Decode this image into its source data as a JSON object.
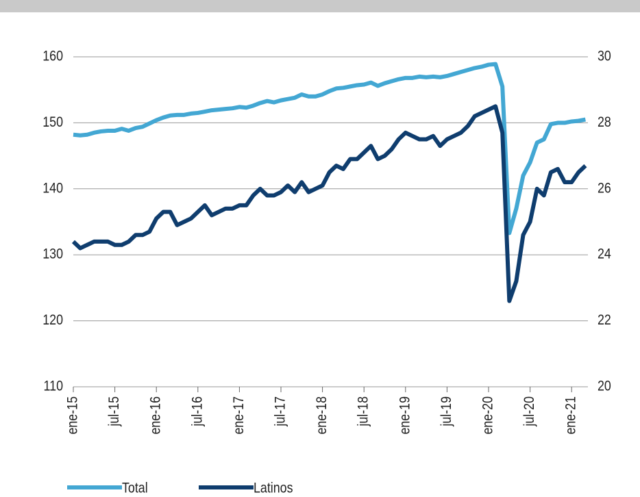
{
  "chart_data": {
    "type": "line",
    "categories": [
      "ene-15",
      null,
      null,
      null,
      null,
      null,
      "jul-15",
      null,
      null,
      null,
      null,
      null,
      "ene-16",
      null,
      null,
      null,
      null,
      null,
      "jul-16",
      null,
      null,
      null,
      null,
      null,
      "ene-17",
      null,
      null,
      null,
      null,
      null,
      "jul-17",
      null,
      null,
      null,
      null,
      null,
      "ene-18",
      null,
      null,
      null,
      null,
      null,
      "jul-18",
      null,
      null,
      null,
      null,
      null,
      "ene-19",
      null,
      null,
      null,
      null,
      null,
      "jul-19",
      null,
      null,
      null,
      null,
      null,
      "ene-20",
      null,
      null,
      null,
      null,
      null,
      "jul-20",
      null,
      null,
      null,
      null,
      null,
      "ene-21",
      null,
      null
    ],
    "series": [
      {
        "name": "Total",
        "color": "#43a7d3",
        "values": [
          148.2,
          148.1,
          148.2,
          148.5,
          148.7,
          148.8,
          148.8,
          149.1,
          148.8,
          149.2,
          149.4,
          149.9,
          150.4,
          150.8,
          151.1,
          151.2,
          151.2,
          151.4,
          151.5,
          151.7,
          151.9,
          152.0,
          152.1,
          152.2,
          152.4,
          152.3,
          152.6,
          153.0,
          153.3,
          153.1,
          153.4,
          153.6,
          153.8,
          154.3,
          154.0,
          154.0,
          154.3,
          154.8,
          155.2,
          155.3,
          155.5,
          155.7,
          155.8,
          156.1,
          155.6,
          156.0,
          156.3,
          156.6,
          156.8,
          156.8,
          157.0,
          156.9,
          157.0,
          156.9,
          157.1,
          157.4,
          157.7,
          158.0,
          158.3,
          158.5,
          158.8,
          158.9,
          155.5,
          133.3,
          137.0,
          142.0,
          144.0,
          147.0,
          147.5,
          149.8,
          150.0,
          150.0,
          150.2,
          150.3,
          150.5
        ]
      },
      {
        "name": "Latinos",
        "color": "#0f3d6e",
        "axis": "y2",
        "values": [
          24.4,
          24.2,
          24.3,
          24.4,
          24.4,
          24.4,
          24.3,
          24.3,
          24.4,
          24.6,
          24.6,
          24.7,
          25.1,
          25.3,
          25.3,
          24.9,
          25.0,
          25.1,
          25.3,
          25.5,
          25.2,
          25.3,
          25.4,
          25.4,
          25.5,
          25.5,
          25.8,
          26.0,
          25.8,
          25.8,
          25.9,
          26.1,
          25.9,
          26.2,
          25.9,
          26.0,
          26.1,
          26.5,
          26.7,
          26.6,
          26.9,
          26.9,
          27.1,
          27.3,
          26.9,
          27.0,
          27.2,
          27.5,
          27.7,
          27.6,
          27.5,
          27.5,
          27.6,
          27.3,
          27.5,
          27.6,
          27.7,
          27.9,
          28.2,
          28.3,
          28.4,
          28.5,
          27.7,
          22.6,
          23.2,
          24.6,
          25.0,
          26.0,
          25.8,
          26.5,
          26.6,
          26.2,
          26.2,
          26.5,
          26.7
        ]
      }
    ],
    "ylim": [
      110,
      160
    ],
    "yticks": [
      110,
      120,
      130,
      140,
      150,
      160
    ],
    "y2lim": [
      20,
      30
    ],
    "y2ticks": [
      20,
      22,
      24,
      26,
      28,
      30
    ],
    "grid": true
  }
}
